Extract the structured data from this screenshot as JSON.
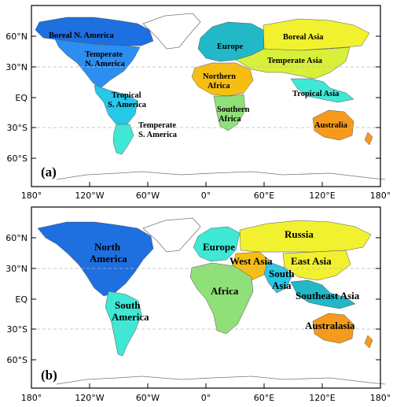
{
  "colors": {
    "blue": "#1e6fe0",
    "blue2": "#2c8ef0",
    "cyan": "#27c8e8",
    "teal": "#22b8c8",
    "aqua": "#3fe8d4",
    "green": "#8fe078",
    "lime": "#d8f03a",
    "lime2": "#bfe83a",
    "yellow": "#f2f12f",
    "amber": "#f7be12",
    "orange": "#f59a1c"
  },
  "axes": {
    "lat_ticks": [
      "60°N",
      "30°N",
      "EQ",
      "30°S",
      "60°S"
    ],
    "lon_ticks": [
      "180°",
      "120°W",
      "60°W",
      "0°",
      "60°E",
      "120°E",
      "180°"
    ]
  },
  "panel_a": {
    "label": "(a)",
    "regions": [
      {
        "label": "Boreal N. America",
        "color": "blue"
      },
      {
        "label": "Temperate",
        "color": "blue2"
      },
      {
        "label": "N. America",
        "color": "blue2"
      },
      {
        "label": "Europe",
        "color": "teal"
      },
      {
        "label": "Boreal Asia",
        "color": "yellow"
      },
      {
        "label": "Temperate Asia",
        "color": "lime"
      },
      {
        "label": "Northern",
        "color": "amber"
      },
      {
        "label": "Africa",
        "color": "amber"
      },
      {
        "label": "Tropical",
        "color": "cyan"
      },
      {
        "label": "S. America",
        "color": "cyan"
      },
      {
        "label": "Southern",
        "color": "green"
      },
      {
        "label": "Africa",
        "color": "green"
      },
      {
        "label": "Tropical Asia",
        "color": "aqua"
      },
      {
        "label": "Temperate",
        "color": "aqua"
      },
      {
        "label": "S. America",
        "color": "aqua"
      },
      {
        "label": "Australia",
        "color": "orange"
      }
    ]
  },
  "panel_b": {
    "label": "(b)",
    "regions": [
      {
        "label": "North",
        "color": "blue"
      },
      {
        "label": "America",
        "color": "blue"
      },
      {
        "label": "Europe",
        "color": "aqua"
      },
      {
        "label": "Russia",
        "color": "yellow"
      },
      {
        "label": "West Asia",
        "color": "amber"
      },
      {
        "label": "East Asia",
        "color": "yellow"
      },
      {
        "label": "South",
        "color": "cyan"
      },
      {
        "label": "Asia",
        "color": "cyan"
      },
      {
        "label": "Africa",
        "color": "green"
      },
      {
        "label": "South",
        "color": "aqua"
      },
      {
        "label": "America",
        "color": "aqua"
      },
      {
        "label": "Southeast Asia",
        "color": "teal"
      },
      {
        "label": "Australasia",
        "color": "orange"
      }
    ]
  }
}
